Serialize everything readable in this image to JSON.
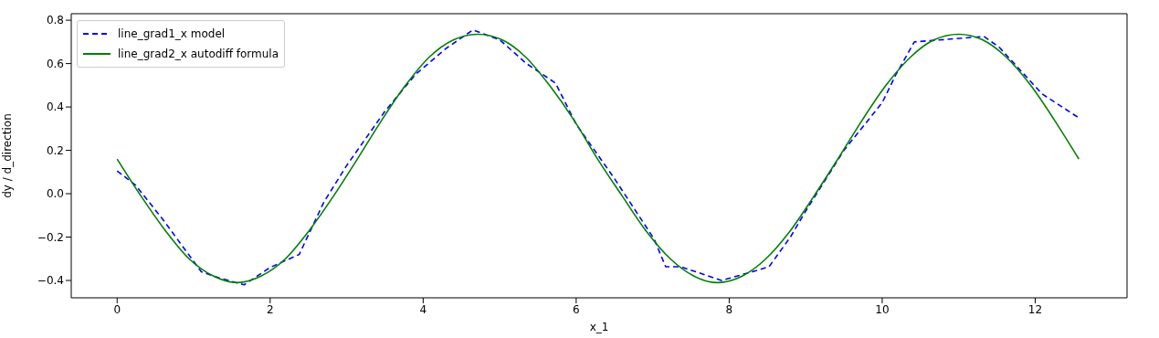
{
  "chart_data": {
    "type": "line",
    "xlabel": "x_1",
    "ylabel": "dy / d_direction",
    "xlim": [
      -0.6,
      13.2
    ],
    "ylim": [
      -0.48,
      0.83
    ],
    "xticks": [
      0,
      2,
      4,
      6,
      8,
      10,
      12
    ],
    "yticks": [
      {
        "value": -0.4,
        "label": "−0.4"
      },
      {
        "value": -0.2,
        "label": "−0.2"
      },
      {
        "value": 0,
        "label": "0.0"
      },
      {
        "value": 0.2,
        "label": "0.2"
      },
      {
        "value": 0.4,
        "label": "0.4"
      },
      {
        "value": 0.6,
        "label": "0.6"
      },
      {
        "value": 0.8,
        "label": "0.8"
      }
    ],
    "legend": "top left",
    "series": [
      {
        "name": "line_grad1_x model",
        "color": "#0000ff",
        "line_style": "dashed",
        "x": [
          0,
          0.24,
          0.6,
          1.1,
          1.35,
          1.66,
          2.0,
          2.38,
          2.7,
          3.0,
          3.5,
          3.9,
          4.3,
          4.65,
          5.0,
          5.35,
          5.73,
          6.0,
          6.5,
          7.02,
          7.17,
          7.37,
          7.9,
          8.3,
          8.52,
          8.8,
          9.0,
          9.5,
          10.0,
          10.18,
          10.42,
          11.33,
          11.53,
          12.09,
          12.57
        ],
        "values": [
          0.105,
          0.04,
          -0.12,
          -0.36,
          -0.39,
          -0.42,
          -0.34,
          -0.28,
          -0.04,
          0.13,
          0.38,
          0.55,
          0.67,
          0.755,
          0.71,
          0.6,
          0.51,
          0.32,
          0.07,
          -0.21,
          -0.337,
          -0.337,
          -0.4,
          -0.36,
          -0.337,
          -0.2,
          -0.08,
          0.2,
          0.42,
          0.55,
          0.7,
          0.725,
          0.675,
          0.46,
          0.35
        ]
      },
      {
        "name": "line_grad2_x autodiff formula",
        "color": "#008000",
        "line_style": "solid",
        "x": [
          0,
          0.31,
          0.63,
          0.94,
          1.26,
          1.57,
          1.88,
          2.2,
          2.51,
          2.83,
          3.14,
          3.46,
          3.77,
          4.08,
          4.4,
          4.71,
          5.03,
          5.34,
          5.65,
          5.97,
          6.28,
          6.6,
          6.91,
          7.23,
          7.54,
          7.85,
          8.17,
          8.48,
          8.8,
          9.11,
          9.42,
          9.74,
          10.05,
          10.37,
          10.68,
          11.0,
          11.31,
          11.62,
          11.94,
          12.25,
          12.57
        ],
        "values": [
          0.16,
          -0.01,
          -0.17,
          -0.3,
          -0.38,
          -0.41,
          -0.38,
          -0.3,
          -0.17,
          -0.01,
          0.16,
          0.34,
          0.5,
          0.63,
          0.71,
          0.735,
          0.71,
          0.63,
          0.5,
          0.34,
          0.16,
          -0.01,
          -0.17,
          -0.3,
          -0.38,
          -0.41,
          -0.38,
          -0.3,
          -0.17,
          -0.01,
          0.16,
          0.34,
          0.5,
          0.63,
          0.71,
          0.735,
          0.71,
          0.63,
          0.5,
          0.34,
          0.16
        ]
      }
    ]
  }
}
